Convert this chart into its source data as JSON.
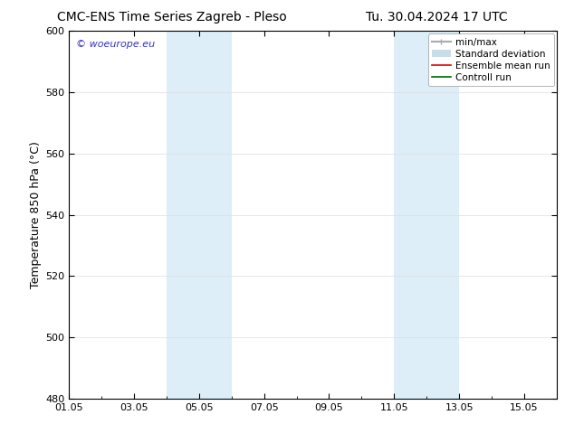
{
  "title_left": "CMC-ENS Time Series Zagreb - Pleso",
  "title_right": "Tu. 30.04.2024 17 UTC",
  "ylabel": "Temperature 850 hPa (°C)",
  "ylim": [
    480,
    600
  ],
  "yticks": [
    480,
    500,
    520,
    540,
    560,
    580,
    600
  ],
  "xlim_start": 0.0,
  "xlim_end": 15.0,
  "xtick_labels": [
    "01.05",
    "03.05",
    "05.05",
    "07.05",
    "09.05",
    "11.05",
    "13.05",
    "15.05"
  ],
  "xtick_positions": [
    0,
    2,
    4,
    6,
    8,
    10,
    12,
    14
  ],
  "shaded_bands": [
    {
      "x_start": 3.0,
      "x_end": 5.0
    },
    {
      "x_start": 10.0,
      "x_end": 12.0
    }
  ],
  "shaded_color": "#ddeef8",
  "watermark_text": "© woeurope.eu",
  "watermark_color": "#3333cc",
  "legend_entries": [
    {
      "label": "min/max",
      "color": "#aaaaaa",
      "lw": 1.5,
      "style": "minmax"
    },
    {
      "label": "Standard deviation",
      "color": "#c8dcea",
      "lw": 8,
      "style": "band"
    },
    {
      "label": "Ensemble mean run",
      "color": "#dd0000",
      "lw": 1.2,
      "style": "line"
    },
    {
      "label": "Controll run",
      "color": "#006600",
      "lw": 1.2,
      "style": "line"
    }
  ],
  "bg_color": "#ffffff",
  "grid_color": "#dddddd",
  "tick_label_fontsize": 8,
  "axis_label_fontsize": 9,
  "title_fontsize": 10,
  "legend_fontsize": 7.5,
  "watermark_fontsize": 8
}
